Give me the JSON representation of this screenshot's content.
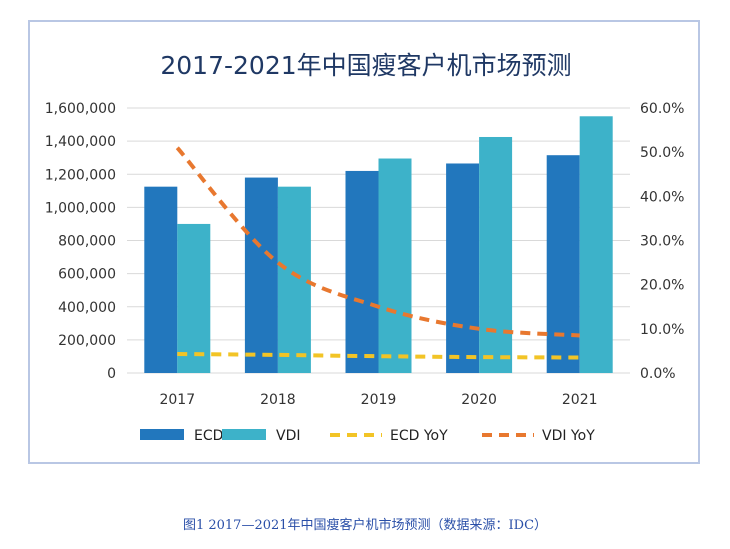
{
  "chart_data": {
    "type": "bar",
    "title": "2017-2021年中国瘦客户机市场预测",
    "categories": [
      "2017",
      "2018",
      "2019",
      "2020",
      "2021"
    ],
    "series": [
      {
        "name": "ECD",
        "kind": "bar",
        "axis": "left",
        "color": "#2277bd",
        "values": [
          1125000,
          1180000,
          1220000,
          1265000,
          1315000
        ]
      },
      {
        "name": "VDI",
        "kind": "bar",
        "axis": "left",
        "color": "#3db2c9",
        "values": [
          900000,
          1125000,
          1295000,
          1425000,
          1550000
        ]
      },
      {
        "name": "ECD YoY",
        "kind": "line",
        "style": "dashed",
        "axis": "right",
        "color": "#f2c426",
        "values": [
          0.043,
          0.041,
          0.038,
          0.036,
          0.035
        ]
      },
      {
        "name": "VDI YoY",
        "kind": "line",
        "style": "dashed",
        "axis": "right",
        "color": "#e8782f",
        "values": [
          0.51,
          0.25,
          0.15,
          0.1,
          0.085
        ]
      }
    ],
    "y_left": {
      "min": 0,
      "max": 1600000,
      "ticks": [
        "0",
        "200,000",
        "400,000",
        "600,000",
        "800,000",
        "1,000,000",
        "1,200,000",
        "1,400,000",
        "1,600,000"
      ]
    },
    "y_right": {
      "min": 0,
      "max": 0.6,
      "ticks": [
        "0.0%",
        "10.0%",
        "20.0%",
        "30.0%",
        "40.0%",
        "50.0%",
        "60.0%"
      ]
    },
    "legend": [
      "ECD",
      "VDI",
      "ECD YoY",
      "VDI YoY"
    ],
    "legend_position": "bottom",
    "grid": true
  },
  "caption": "图1 2017—2021年中国瘦客户机市场预测（数据来源：IDC）"
}
